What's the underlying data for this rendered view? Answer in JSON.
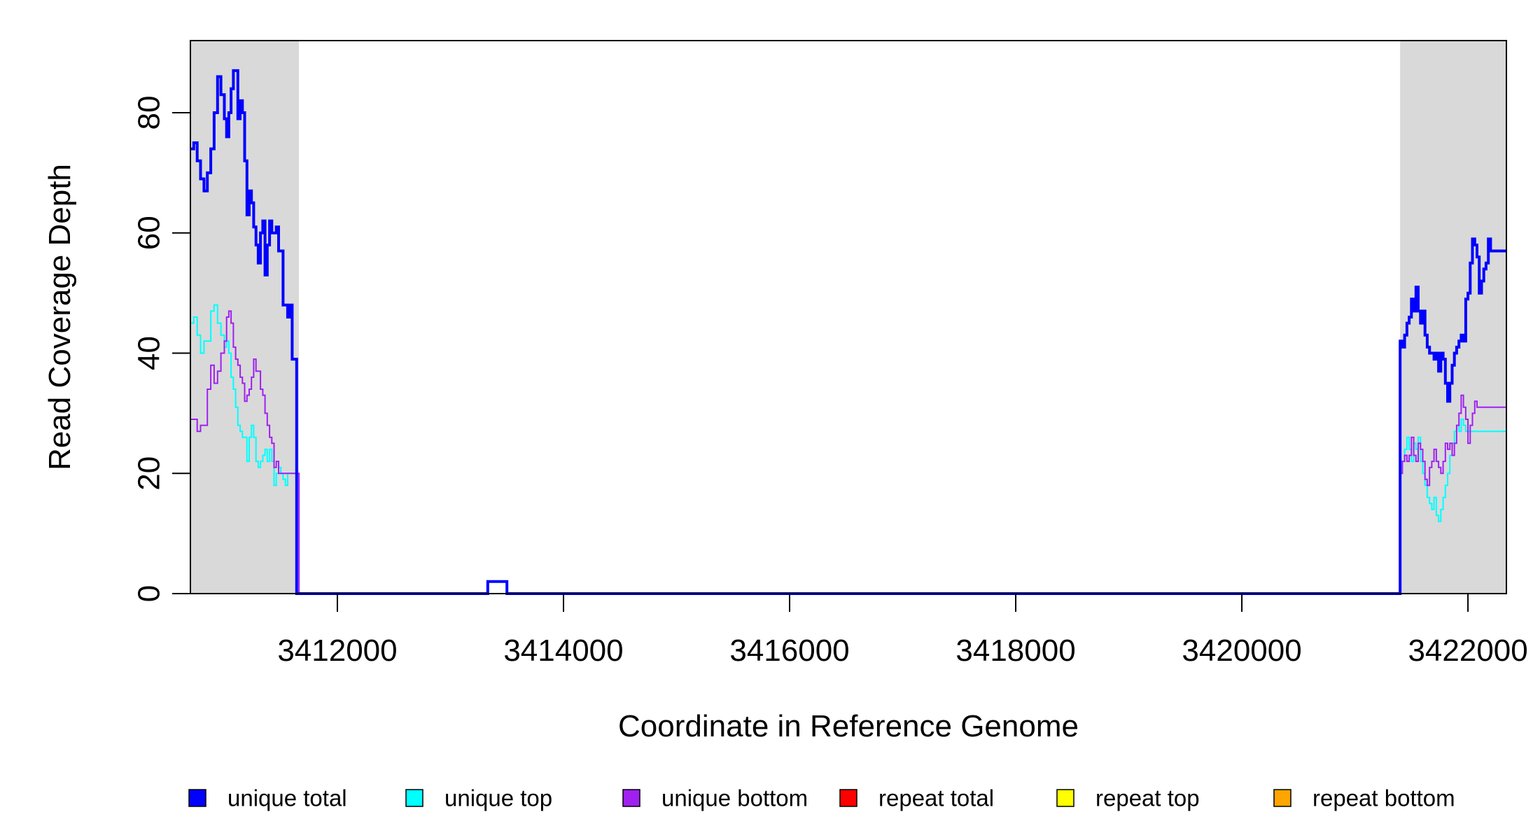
{
  "chart_data": {
    "type": "line",
    "title": "",
    "xlabel": "Coordinate in Reference Genome",
    "ylabel": "Read Coverage Depth",
    "xlim": [
      3410700,
      3422340
    ],
    "ylim": [
      0,
      92
    ],
    "x_ticks": [
      3412000,
      3414000,
      3416000,
      3418000,
      3420000,
      3422000
    ],
    "x_tick_labels": [
      "3412000",
      "3414000",
      "3416000",
      "3418000",
      "3420000",
      "3422000"
    ],
    "y_ticks": [
      0,
      20,
      40,
      60,
      80
    ],
    "y_tick_labels": [
      "0",
      "20",
      "40",
      "60",
      "80"
    ],
    "grid": false,
    "shaded_regions": [
      {
        "x_start": 3410700,
        "x_end": 3411660,
        "color": "#d9d9d9"
      },
      {
        "x_start": 3421400,
        "x_end": 3422340,
        "color": "#d9d9d9"
      }
    ],
    "legend_position": "bottom",
    "series": [
      {
        "name": "unique total",
        "color": "#0000ff",
        "width": 4,
        "x": [
          3410700,
          3410730,
          3410760,
          3410790,
          3410820,
          3410850,
          3410880,
          3410910,
          3410940,
          3410970,
          3411000,
          3411020,
          3411040,
          3411060,
          3411080,
          3411100,
          3411120,
          3411140,
          3411160,
          3411180,
          3411200,
          3411220,
          3411240,
          3411260,
          3411280,
          3411300,
          3411320,
          3411340,
          3411360,
          3411380,
          3411400,
          3411420,
          3411440,
          3411460,
          3411480,
          3411500,
          3411520,
          3411540,
          3411560,
          3411580,
          3411600,
          3411620,
          3411640,
          3411660,
          3413330,
          3413500,
          3421400,
          3421420,
          3421440,
          3421460,
          3421480,
          3421500,
          3421520,
          3421540,
          3421560,
          3421580,
          3421600,
          3421620,
          3421640,
          3421660,
          3421680,
          3421700,
          3421720,
          3421740,
          3421760,
          3421780,
          3421800,
          3421820,
          3421840,
          3421860,
          3421880,
          3421900,
          3421920,
          3421940,
          3421960,
          3421980,
          3422000,
          3422020,
          3422040,
          3422060,
          3422080,
          3422100,
          3422120,
          3422140,
          3422160,
          3422180,
          3422200,
          3422220,
          3422240,
          3422260,
          3422280,
          3422300,
          3422320,
          3422340
        ],
        "y": [
          74,
          75,
          72,
          69,
          67,
          70,
          74,
          80,
          86,
          83,
          79,
          76,
          80,
          84,
          87,
          87,
          79,
          82,
          80,
          72,
          63,
          67,
          65,
          61,
          58,
          55,
          60,
          62,
          53,
          58,
          62,
          60,
          60,
          61,
          57,
          57,
          48,
          48,
          46,
          48,
          39,
          39,
          0,
          0,
          2,
          0,
          42,
          41,
          43,
          45,
          46,
          49,
          47,
          51,
          47,
          45,
          47,
          43,
          41,
          40,
          40,
          39,
          40,
          37,
          40,
          39,
          35,
          32,
          35,
          38,
          40,
          41,
          42,
          43,
          42,
          49,
          50,
          55,
          59,
          58,
          56,
          50,
          52,
          54,
          55,
          59,
          57,
          57,
          57,
          57,
          57,
          57,
          57,
          57
        ]
      },
      {
        "name": "unique top",
        "color": "#00ffff",
        "width": 2,
        "x": [
          3410700,
          3410730,
          3410760,
          3410790,
          3410820,
          3410850,
          3410880,
          3410910,
          3410940,
          3410970,
          3411000,
          3411020,
          3411040,
          3411060,
          3411080,
          3411100,
          3411120,
          3411140,
          3411160,
          3411180,
          3411200,
          3411220,
          3411240,
          3411260,
          3411280,
          3411300,
          3411320,
          3411340,
          3411360,
          3411380,
          3411400,
          3411420,
          3411440,
          3411460,
          3411480,
          3411500,
          3411520,
          3411540,
          3411560,
          3411580,
          3411600,
          3411620,
          3411640,
          3411660,
          3413330,
          3413500,
          3421400,
          3421420,
          3421440,
          3421460,
          3421480,
          3421500,
          3421520,
          3421540,
          3421560,
          3421580,
          3421600,
          3421620,
          3421640,
          3421660,
          3421680,
          3421700,
          3421720,
          3421740,
          3421760,
          3421780,
          3421800,
          3421820,
          3421840,
          3421860,
          3421880,
          3421900,
          3421920,
          3421940,
          3421960,
          3421980,
          3422000,
          3422020,
          3422040,
          3422060,
          3422080,
          3422100,
          3422120,
          3422140,
          3422160,
          3422180,
          3422200,
          3422220,
          3422240,
          3422260,
          3422280,
          3422300,
          3422320,
          3422340
        ],
        "y": [
          45,
          46,
          43,
          40,
          42,
          42,
          47,
          48,
          45,
          43,
          41,
          42,
          40,
          36,
          34,
          31,
          28,
          27,
          26,
          26,
          22,
          26,
          28,
          26,
          22,
          21,
          22,
          23,
          24,
          22,
          24,
          22,
          18,
          20,
          21,
          20,
          19,
          18,
          20,
          20,
          20,
          20,
          20,
          0,
          0,
          0,
          21,
          22,
          24,
          26,
          24,
          22,
          25,
          24,
          26,
          22,
          20,
          18,
          16,
          15,
          14,
          16,
          13,
          12,
          14,
          16,
          18,
          20,
          23,
          25,
          27,
          28,
          27,
          29,
          28,
          27,
          27,
          27,
          27,
          27,
          27,
          27,
          27,
          27,
          27,
          27,
          27,
          27,
          27,
          27,
          27,
          27,
          27,
          27
        ]
      },
      {
        "name": "unique bottom",
        "color": "#a020f0",
        "width": 2,
        "x": [
          3410700,
          3410730,
          3410760,
          3410790,
          3410820,
          3410850,
          3410880,
          3410910,
          3410940,
          3410970,
          3411000,
          3411020,
          3411040,
          3411060,
          3411080,
          3411100,
          3411120,
          3411140,
          3411160,
          3411180,
          3411200,
          3411220,
          3411240,
          3411260,
          3411280,
          3411300,
          3411320,
          3411340,
          3411360,
          3411380,
          3411400,
          3411420,
          3411440,
          3411460,
          3411480,
          3411500,
          3411520,
          3411540,
          3411560,
          3411580,
          3411600,
          3411620,
          3411640,
          3411660,
          3413330,
          3413500,
          3421400,
          3421420,
          3421440,
          3421460,
          3421480,
          3421500,
          3421520,
          3421540,
          3421560,
          3421580,
          3421600,
          3421620,
          3421640,
          3421660,
          3421680,
          3421700,
          3421720,
          3421740,
          3421760,
          3421780,
          3421800,
          3421820,
          3421840,
          3421860,
          3421880,
          3421900,
          3421920,
          3421940,
          3421960,
          3421980,
          3422000,
          3422020,
          3422040,
          3422060,
          3422080,
          3422100,
          3422120,
          3422140,
          3422160,
          3422180,
          3422200,
          3422220,
          3422240,
          3422260,
          3422280,
          3422300,
          3422320,
          3422340
        ],
        "y": [
          29,
          29,
          27,
          28,
          28,
          34,
          38,
          35,
          37,
          40,
          42,
          46,
          47,
          45,
          41,
          39,
          38,
          36,
          35,
          32,
          33,
          34,
          36,
          39,
          37,
          37,
          34,
          33,
          30,
          28,
          26,
          25,
          21,
          22,
          20,
          20,
          20,
          20,
          20,
          20,
          20,
          20,
          20,
          0,
          0,
          0,
          20,
          22,
          23,
          22,
          23,
          26,
          23,
          22,
          25,
          24,
          22,
          19,
          18,
          21,
          22,
          24,
          22,
          21,
          20,
          22,
          25,
          24,
          25,
          23,
          25,
          28,
          30,
          33,
          31,
          29,
          25,
          28,
          30,
          32,
          31,
          31,
          31,
          31,
          31,
          31,
          31,
          31,
          31,
          31,
          31,
          31,
          31,
          31
        ]
      },
      {
        "name": "repeat total",
        "color": "#ff0000",
        "width": 2,
        "x": [
          3410700,
          3422340
        ],
        "y": [
          0,
          0
        ]
      },
      {
        "name": "repeat top",
        "color": "#ffff00",
        "width": 2,
        "x": [
          3410700,
          3422340
        ],
        "y": [
          0,
          0
        ]
      },
      {
        "name": "repeat bottom",
        "color": "#ffa500",
        "width": 2,
        "x": [
          3410700,
          3422340
        ],
        "y": [
          0,
          0
        ]
      }
    ]
  }
}
